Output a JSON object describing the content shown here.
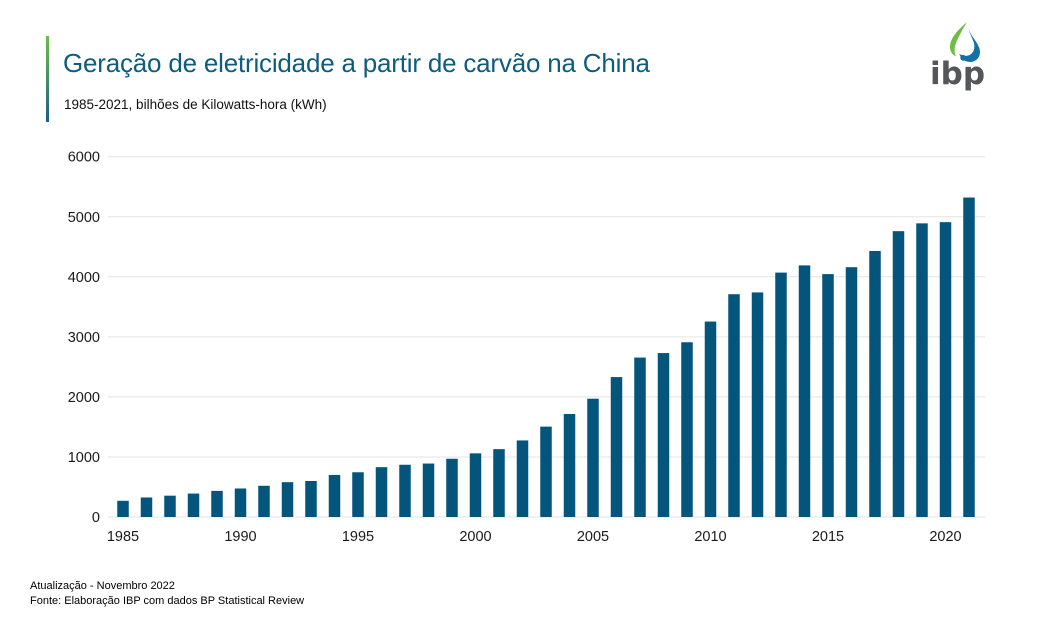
{
  "header": {
    "title": "Geração de eletricidade a partir de carvão na China",
    "subtitle": "1985-2021, bilhões de Kilowatts-hora (kWh)",
    "logo_text": "ibp"
  },
  "footer": {
    "line1": "Atualização - Novembro 2022",
    "line2": "Fonte: Elaboração IBP com dados BP Statistical Review"
  },
  "colors": {
    "title": "#0e5c7e",
    "bar": "#04557c",
    "gridline": "#e3e3e3",
    "axis_text": "#1a1a1a",
    "accent_green": "#6cbe45",
    "accent_blue": "#1e5c8a",
    "logo_green": "#6cbe45",
    "logo_blue": "#1570a6",
    "logo_text": "#55565a"
  },
  "chart_data": {
    "type": "bar",
    "title": "Geração de eletricidade a partir de carvão na China",
    "subtitle": "1985-2021, bilhões de Kilowatts-hora (kWh)",
    "source": "Fonte: Elaboração IBP com dados BP Statistical Review",
    "categories": [
      "1985",
      "1986",
      "1987",
      "1988",
      "1989",
      "1990",
      "1991",
      "1992",
      "1993",
      "1994",
      "1995",
      "1996",
      "1997",
      "1998",
      "1999",
      "2000",
      "2001",
      "2002",
      "2003",
      "2004",
      "2005",
      "2006",
      "2007",
      "2008",
      "2009",
      "2010",
      "2011",
      "2012",
      "2013",
      "2014",
      "2015",
      "2016",
      "2017",
      "2018",
      "2019",
      "2020",
      "2021"
    ],
    "values": [
      270,
      325,
      355,
      390,
      435,
      475,
      520,
      580,
      600,
      700,
      745,
      830,
      870,
      890,
      970,
      1060,
      1130,
      1275,
      1505,
      1715,
      1970,
      2330,
      2655,
      2730,
      2910,
      3255,
      3710,
      3740,
      4070,
      4190,
      4045,
      4160,
      4430,
      4760,
      4890,
      4910,
      5320
    ],
    "xlabel": "",
    "ylabel": "",
    "ylim": [
      0,
      6000
    ],
    "yticks": [
      0,
      1000,
      2000,
      3000,
      4000,
      5000,
      6000
    ],
    "xticks": [
      "1985",
      "1990",
      "1995",
      "2000",
      "2005",
      "2010",
      "2015",
      "2020"
    ],
    "grid": true,
    "legend": false
  }
}
